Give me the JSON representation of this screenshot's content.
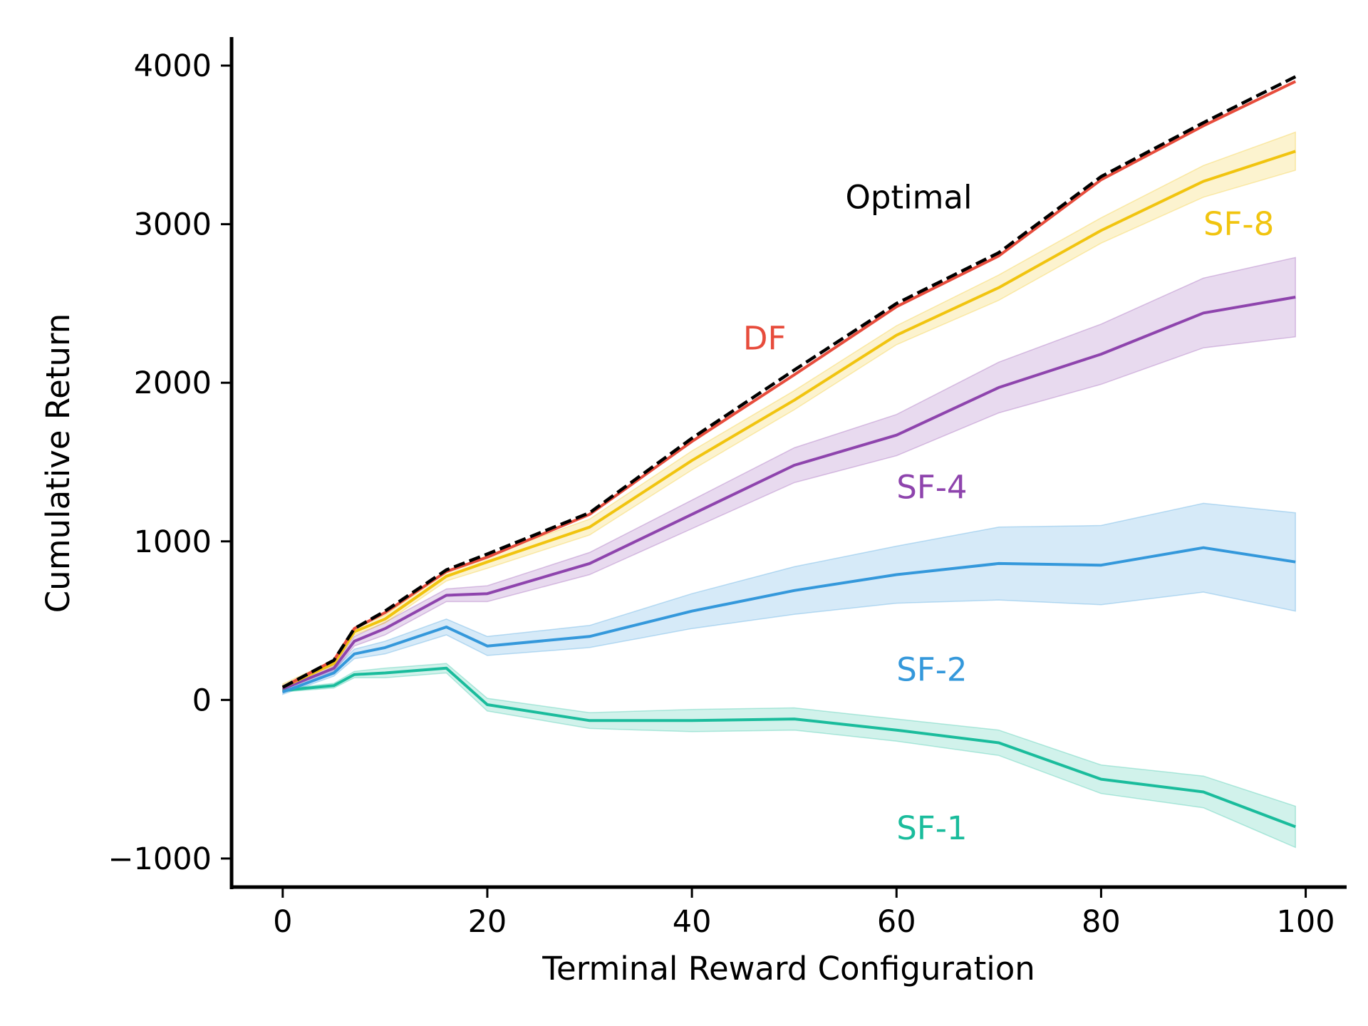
{
  "chart_data": {
    "type": "line",
    "xlabel": "Terminal Reward Configuration",
    "ylabel": "Cumulative Return",
    "xlim": [
      -5,
      104
    ],
    "ylim": [
      -1180,
      4180
    ],
    "xticks": [
      0,
      20,
      40,
      60,
      80,
      100
    ],
    "yticks": [
      -1000,
      0,
      1000,
      2000,
      3000,
      4000
    ],
    "xtick_labels": [
      "0",
      "20",
      "40",
      "60",
      "80",
      "100"
    ],
    "ytick_labels": [
      "−1000",
      "0",
      "1000",
      "2000",
      "3000",
      "4000"
    ],
    "grid": false,
    "legend": "inline labels",
    "x": [
      0,
      5,
      7,
      10,
      16,
      20,
      30,
      40,
      50,
      60,
      70,
      80,
      90,
      99
    ],
    "series": [
      {
        "name": "Optimal",
        "color": "#000000",
        "dashed": true,
        "band": null,
        "label_position": [
          55,
          3100
        ],
        "values": [
          80,
          250,
          450,
          560,
          820,
          920,
          1180,
          1650,
          2080,
          2500,
          2820,
          3300,
          3640,
          3930
        ]
      },
      {
        "name": "DF",
        "color": "#e74c3c",
        "dashed": false,
        "band": null,
        "label_position": [
          45,
          2210
        ],
        "values": [
          80,
          250,
          450,
          550,
          810,
          900,
          1170,
          1630,
          2050,
          2480,
          2800,
          3280,
          3620,
          3900
        ]
      },
      {
        "name": "SF-8",
        "color": "#f1c40f",
        "dashed": false,
        "band": [
          20,
          20,
          20,
          25,
          30,
          40,
          50,
          60,
          60,
          60,
          80,
          80,
          100,
          120
        ],
        "label_position": [
          90,
          2930
        ],
        "values": [
          80,
          230,
          430,
          510,
          780,
          870,
          1090,
          1510,
          1890,
          2300,
          2600,
          2960,
          3270,
          3460
        ]
      },
      {
        "name": "SF-4",
        "color": "#8e44ad",
        "dashed": false,
        "band": [
          20,
          20,
          30,
          40,
          40,
          50,
          70,
          90,
          110,
          130,
          160,
          190,
          220,
          250
        ],
        "label_position": [
          60,
          1270
        ],
        "values": [
          70,
          200,
          370,
          450,
          660,
          670,
          860,
          1170,
          1480,
          1670,
          1970,
          2180,
          2440,
          2540
        ]
      },
      {
        "name": "SF-2",
        "color": "#3498db",
        "dashed": false,
        "band": [
          15,
          20,
          30,
          40,
          50,
          60,
          70,
          110,
          150,
          180,
          230,
          250,
          280,
          310
        ],
        "label_position": [
          60,
          120
        ],
        "values": [
          50,
          170,
          290,
          330,
          460,
          340,
          400,
          560,
          690,
          790,
          860,
          850,
          960,
          870
        ]
      },
      {
        "name": "SF-1",
        "color": "#1abc9c",
        "dashed": false,
        "band": [
          10,
          15,
          20,
          30,
          30,
          40,
          50,
          70,
          70,
          70,
          80,
          90,
          100,
          130
        ],
        "label_position": [
          60,
          -880
        ],
        "values": [
          60,
          90,
          160,
          170,
          200,
          -30,
          -130,
          -130,
          -120,
          -190,
          -270,
          -500,
          -580,
          -800
        ]
      }
    ]
  }
}
